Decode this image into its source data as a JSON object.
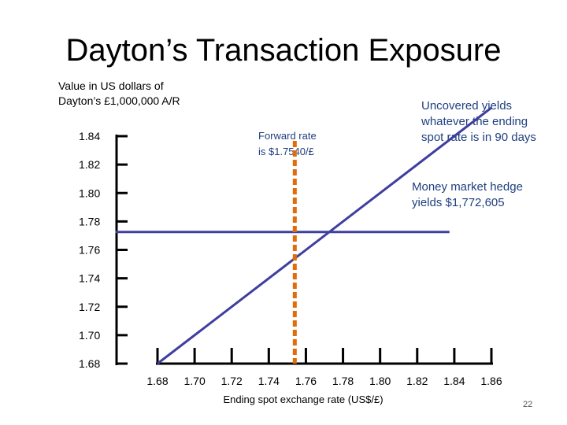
{
  "slide": {
    "title": "Dayton’s Transaction Exposure",
    "page_number": "22"
  },
  "chart_data": {
    "type": "line",
    "title": "Dayton’s Transaction Exposure",
    "ylabel": "Value in US dollars of\nDayton’s £1,000,000 A/R",
    "xlabel": "Ending spot exchange rate (US$/£)",
    "x_ticks": [
      "1.68",
      "1.70",
      "1.72",
      "1.74",
      "1.76",
      "1.78",
      "1.80",
      "1.82",
      "1.84",
      "1.86"
    ],
    "y_ticks": [
      "1.84",
      "1.82",
      "1.80",
      "1.78",
      "1.76",
      "1.74",
      "1.72",
      "1.70",
      "1.68"
    ],
    "xlim": [
      1.68,
      1.86
    ],
    "ylim": [
      1.68,
      1.84
    ],
    "grid": false,
    "series": [
      {
        "role": "uncovered",
        "color": "#3F3F9F",
        "points": [
          [
            1.68,
            1.68
          ],
          [
            1.86,
            1.86
          ]
        ]
      },
      {
        "role": "money-market-hedge",
        "color": "#3F3F9F",
        "points": [
          [
            1.6573,
            1.7726
          ],
          [
            1.8374,
            1.7726
          ]
        ]
      },
      {
        "role": "forward-rate",
        "color": "#E36C0A",
        "dashed": true,
        "x": 1.754,
        "y_range": [
          1.68,
          1.8367
        ]
      }
    ],
    "annotations": {
      "forward": "Forward rate\nis $1.7540/£",
      "uncovered": "Uncovered yields\nwhatever the ending\nspot rate is in 90 days",
      "money_market": "Money market hedge\nyields $1,772,605"
    }
  }
}
